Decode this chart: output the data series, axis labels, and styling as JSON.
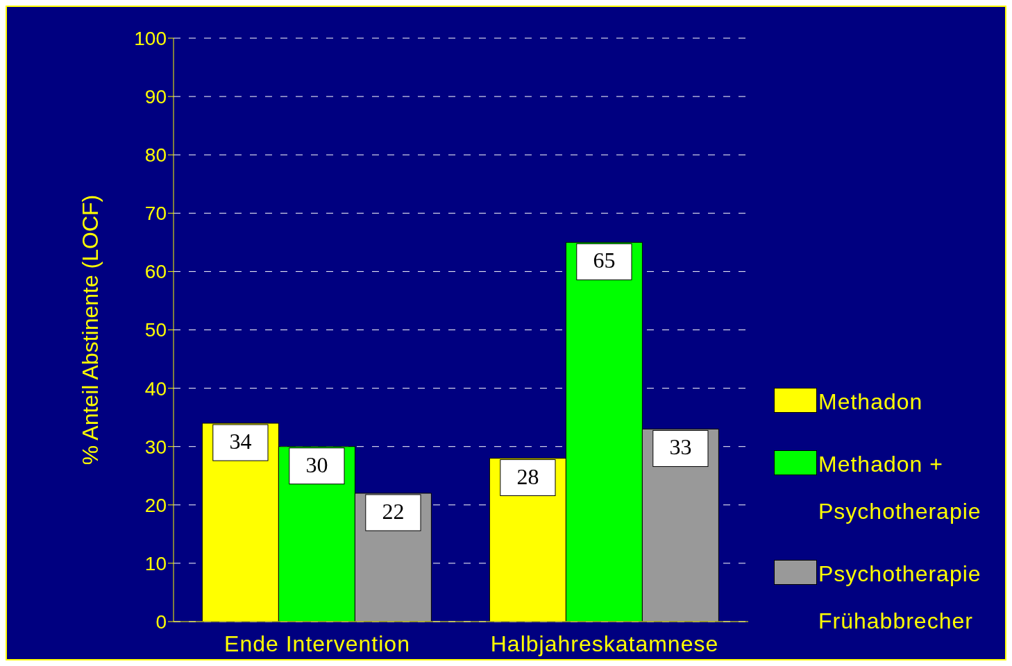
{
  "chart_data": {
    "type": "bar",
    "ylabel": "% Anteil Abstinente (LOCF)",
    "categories": [
      "Ende Intervention",
      "Halbjahreskatamnese"
    ],
    "series": [
      {
        "name": "Methadon",
        "color": "#ffff00",
        "values": [
          34,
          28
        ]
      },
      {
        "name": "Methadon + Psychotherapie",
        "color": "#00ff00",
        "values": [
          30,
          65
        ]
      },
      {
        "name": "Psychotherapie Frühabbrecher",
        "color": "#999999",
        "values": [
          22,
          33
        ]
      }
    ],
    "ylim": [
      0,
      100
    ],
    "yticks": [
      0,
      10,
      20,
      30,
      40,
      50,
      60,
      70,
      80,
      90,
      100
    ],
    "grid": "y",
    "legend": "right",
    "data_labels": true
  }
}
